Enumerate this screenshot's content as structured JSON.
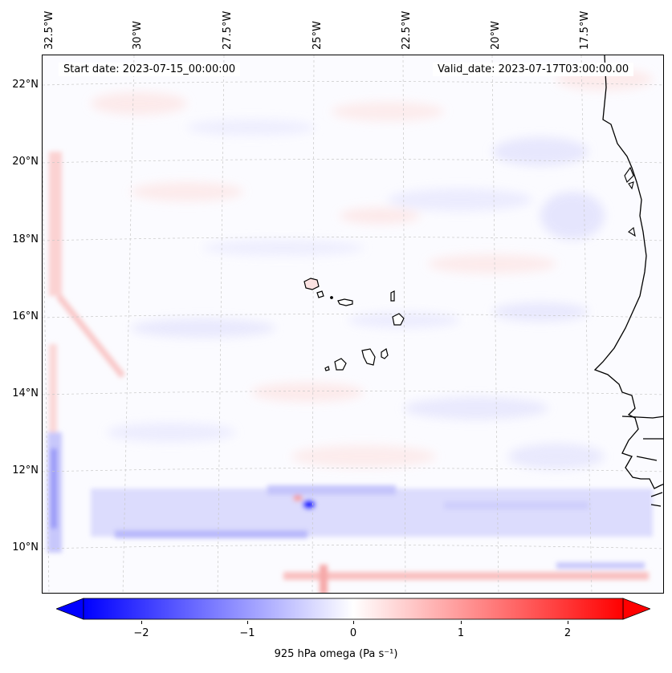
{
  "map": {
    "start_date": "Start date: 2023-07-15_00:00:00",
    "valid_date": "Valid_date: 2023-07-17T03:00:00.00",
    "lon_labels": [
      "32.5°W",
      "30°W",
      "27.5°W",
      "25°W",
      "22.5°W",
      "20°W",
      "17.5°W"
    ],
    "lat_labels": [
      "22°N",
      "20°N",
      "18°N",
      "16°N",
      "14°N",
      "12°N",
      "10°N"
    ],
    "colorbar": {
      "label": "925 hPa omega (Pa s⁻¹)",
      "ticks": [
        "−2",
        "−1",
        "0",
        "1",
        "2"
      ],
      "min_color": "#0000ff",
      "mid_color": "#ffffff",
      "max_color": "#ff0000"
    }
  }
}
